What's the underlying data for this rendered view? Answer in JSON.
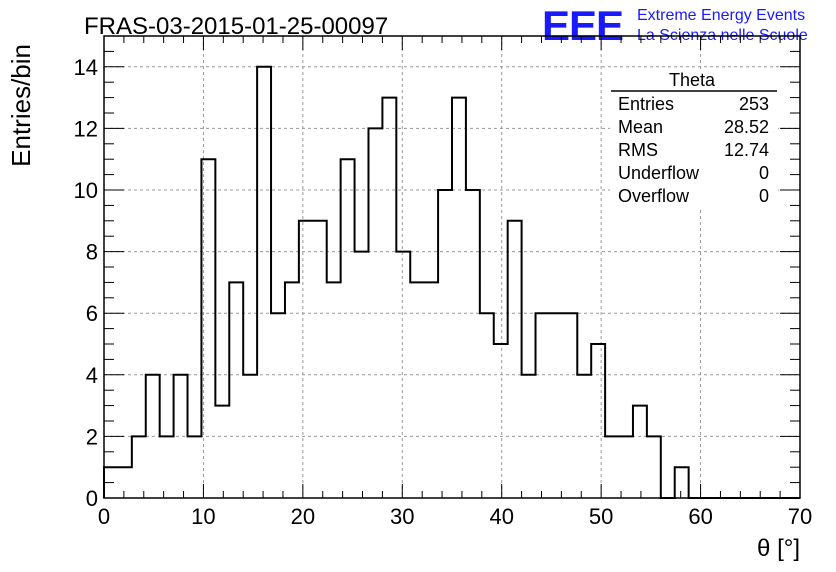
{
  "header": {
    "title": "FRAS-03-2015-01-25-00097",
    "logo_text": "EEE",
    "logo_line1": "Extreme Energy Events",
    "logo_line2": "La Scienza nelle Scuole",
    "logo_color": "#1a1aff"
  },
  "stats": {
    "name": "Theta",
    "rows": [
      {
        "label": "Entries",
        "value": "253"
      },
      {
        "label": "Mean",
        "value": "28.52"
      },
      {
        "label": "RMS",
        "value": "12.74"
      },
      {
        "label": "Underflow",
        "value": "0"
      },
      {
        "label": "Overflow",
        "value": "0"
      }
    ]
  },
  "chart_data": {
    "type": "bar",
    "style": "step-histogram",
    "xlabel": "θ [°]",
    "ylabel": "Entries/bin",
    "xlim": [
      0,
      70
    ],
    "ylim": [
      0,
      15
    ],
    "grid": true,
    "bin_edges": [
      0,
      1.4,
      2.8,
      4.2,
      5.6,
      7.0,
      8.4,
      9.8,
      11.2,
      12.6,
      14.0,
      15.4,
      16.8,
      18.2,
      19.6,
      21.0,
      22.4,
      23.8,
      25.2,
      26.6,
      28.0,
      29.4,
      30.8,
      32.2,
      33.6,
      35.0,
      36.4,
      37.8,
      39.2,
      40.6,
      42.0,
      43.4,
      44.8,
      46.2,
      47.6,
      49.0,
      50.4,
      51.8,
      53.2,
      54.6,
      56.0,
      57.4,
      58.8,
      60.2,
      61.6,
      63.0,
      64.4,
      65.8,
      67.2,
      68.6,
      70.0
    ],
    "values": [
      1,
      1,
      2,
      4,
      2,
      4,
      2,
      11,
      3,
      7,
      4,
      14,
      6,
      7,
      9,
      9,
      7,
      11,
      8,
      12,
      13,
      8,
      7,
      7,
      10,
      13,
      10,
      6,
      5,
      9,
      4,
      6,
      6,
      6,
      4,
      5,
      2,
      2,
      3,
      2,
      0,
      1,
      0,
      0,
      0,
      0,
      0,
      0,
      0,
      0
    ],
    "x_ticks": [
      "0",
      "10",
      "20",
      "30",
      "40",
      "50",
      "60",
      "70"
    ],
    "y_ticks": [
      "0",
      "2",
      "4",
      "6",
      "8",
      "10",
      "12",
      "14"
    ]
  }
}
